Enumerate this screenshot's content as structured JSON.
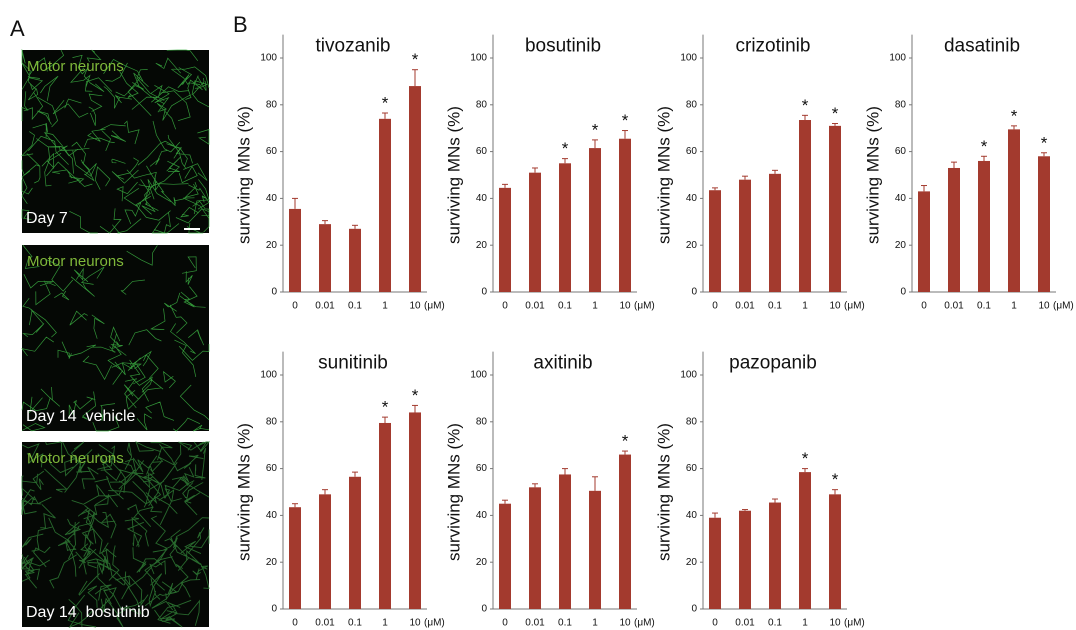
{
  "panel_a": {
    "label": "A",
    "images": [
      {
        "marker": "Motor neurons",
        "caption": "Day 7"
      },
      {
        "marker": "Motor neurons",
        "caption": "Day 14  vehicle"
      },
      {
        "marker": "Motor neurons",
        "caption": "Day 14  bosutinib"
      }
    ]
  },
  "panel_b_label": "B",
  "chart_data": [
    {
      "type": "bar",
      "title": "tivozanib",
      "y_label": "surviving MNs (%)",
      "x_unit": "(μM)",
      "categories": [
        "0",
        "0.01",
        "0.1",
        "1",
        "10"
      ],
      "values": [
        35.5,
        29,
        27,
        74,
        88
      ],
      "errors": [
        4.5,
        1.5,
        1.5,
        2.5,
        7
      ],
      "significance": [
        null,
        null,
        null,
        "*",
        "*"
      ],
      "color": "#a33a2e",
      "ylim": [
        0,
        110
      ],
      "yticks": [
        0,
        20,
        40,
        60,
        80,
        100
      ]
    },
    {
      "type": "bar",
      "title": "bosutinib",
      "y_label": "surviving MNs (%)",
      "x_unit": "(μM)",
      "categories": [
        "0",
        "0.01",
        "0.1",
        "1",
        "10"
      ],
      "values": [
        44.5,
        51,
        55,
        61.5,
        65.5
      ],
      "errors": [
        1.5,
        2,
        2,
        3.5,
        3.5
      ],
      "significance": [
        null,
        null,
        "*",
        "*",
        "*"
      ],
      "color": "#a33a2e",
      "ylim": [
        0,
        110
      ],
      "yticks": [
        0,
        20,
        40,
        60,
        80,
        100
      ]
    },
    {
      "type": "bar",
      "title": "crizotinib",
      "y_label": "surviving MNs (%)",
      "x_unit": "(μM)",
      "categories": [
        "0",
        "0.01",
        "0.1",
        "1",
        "10"
      ],
      "values": [
        43.5,
        48,
        50.5,
        73.5,
        71
      ],
      "errors": [
        1,
        1.5,
        1.5,
        2,
        1
      ],
      "significance": [
        null,
        null,
        null,
        "*",
        "*"
      ],
      "color": "#a33a2e",
      "ylim": [
        0,
        110
      ],
      "yticks": [
        0,
        20,
        40,
        60,
        80,
        100
      ]
    },
    {
      "type": "bar",
      "title": "dasatinib",
      "y_label": "surviving MNs (%)",
      "x_unit": "(μM)",
      "categories": [
        "0",
        "0.01",
        "0.1",
        "1",
        "10"
      ],
      "values": [
        43,
        53,
        56,
        69.5,
        58
      ],
      "errors": [
        2.5,
        2.5,
        2,
        1.5,
        1.5
      ],
      "significance": [
        null,
        null,
        "*",
        "*",
        "*"
      ],
      "color": "#a33a2e",
      "ylim": [
        0,
        110
      ],
      "yticks": [
        0,
        20,
        40,
        60,
        80,
        100
      ]
    },
    {
      "type": "bar",
      "title": "sunitinib",
      "y_label": "surviving MNs (%)",
      "x_unit": "(μM)",
      "categories": [
        "0",
        "0.01",
        "0.1",
        "1",
        "10"
      ],
      "values": [
        43.5,
        49,
        56.5,
        79.5,
        84
      ],
      "errors": [
        1.5,
        2,
        2,
        2.5,
        3
      ],
      "significance": [
        null,
        null,
        null,
        "*",
        "*"
      ],
      "color": "#a33a2e",
      "ylim": [
        0,
        110
      ],
      "yticks": [
        0,
        20,
        40,
        60,
        80,
        100
      ]
    },
    {
      "type": "bar",
      "title": "axitinib",
      "y_label": "surviving MNs (%)",
      "x_unit": "(μM)",
      "categories": [
        "0",
        "0.01",
        "0.1",
        "1",
        "10"
      ],
      "values": [
        45,
        52,
        57.5,
        50.5,
        66
      ],
      "errors": [
        1.5,
        1.5,
        2.5,
        6,
        1.5
      ],
      "significance": [
        null,
        null,
        null,
        null,
        "*"
      ],
      "color": "#a33a2e",
      "ylim": [
        0,
        110
      ],
      "yticks": [
        0,
        20,
        40,
        60,
        80,
        100
      ]
    },
    {
      "type": "bar",
      "title": "pazopanib",
      "y_label": "surviving MNs (%)",
      "x_unit": "(μM)",
      "categories": [
        "0",
        "0.01",
        "0.1",
        "1",
        "10"
      ],
      "values": [
        39,
        42,
        45.5,
        58.5,
        49
      ],
      "errors": [
        2,
        0.5,
        1.5,
        1.5,
        2
      ],
      "significance": [
        null,
        null,
        null,
        "*",
        "*"
      ],
      "color": "#a33a2e",
      "ylim": [
        0,
        110
      ],
      "yticks": [
        0,
        20,
        40,
        60,
        80,
        100
      ]
    }
  ]
}
